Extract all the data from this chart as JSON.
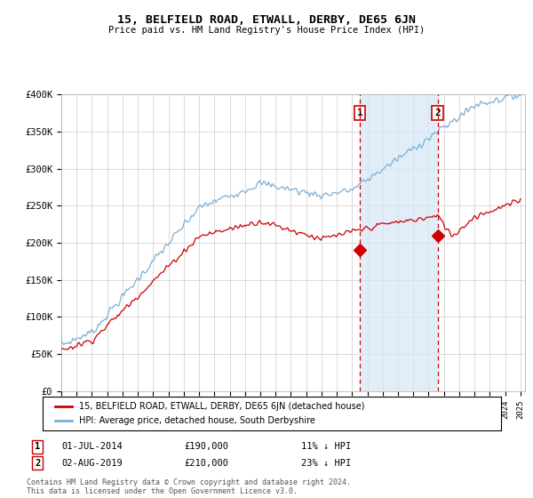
{
  "title": "15, BELFIELD ROAD, ETWALL, DERBY, DE65 6JN",
  "subtitle": "Price paid vs. HM Land Registry's House Price Index (HPI)",
  "x_start_year": 1995,
  "x_end_year": 2025,
  "y_min": 0,
  "y_max": 400000,
  "y_ticks": [
    0,
    50000,
    100000,
    150000,
    200000,
    250000,
    300000,
    350000,
    400000
  ],
  "y_tick_labels": [
    "£0",
    "£50K",
    "£100K",
    "£150K",
    "£200K",
    "£250K",
    "£300K",
    "£350K",
    "£400K"
  ],
  "hpi_color": "#7bafd4",
  "hpi_fill_color": "#d6e8f5",
  "price_color": "#cc0000",
  "sale1_date": 2014.5,
  "sale1_price": 190000,
  "sale2_date": 2019.583,
  "sale2_price": 210000,
  "legend_property": "15, BELFIELD ROAD, ETWALL, DERBY, DE65 6JN (detached house)",
  "legend_hpi": "HPI: Average price, detached house, South Derbyshire",
  "note1_date": "01-JUL-2014",
  "note1_price": "£190,000",
  "note1_pct": "11% ↓ HPI",
  "note2_date": "02-AUG-2019",
  "note2_price": "£210,000",
  "note2_pct": "23% ↓ HPI",
  "footer": "Contains HM Land Registry data © Crown copyright and database right 2024.\nThis data is licensed under the Open Government Licence v3.0.",
  "background_color": "#ffffff",
  "grid_color": "#cccccc"
}
